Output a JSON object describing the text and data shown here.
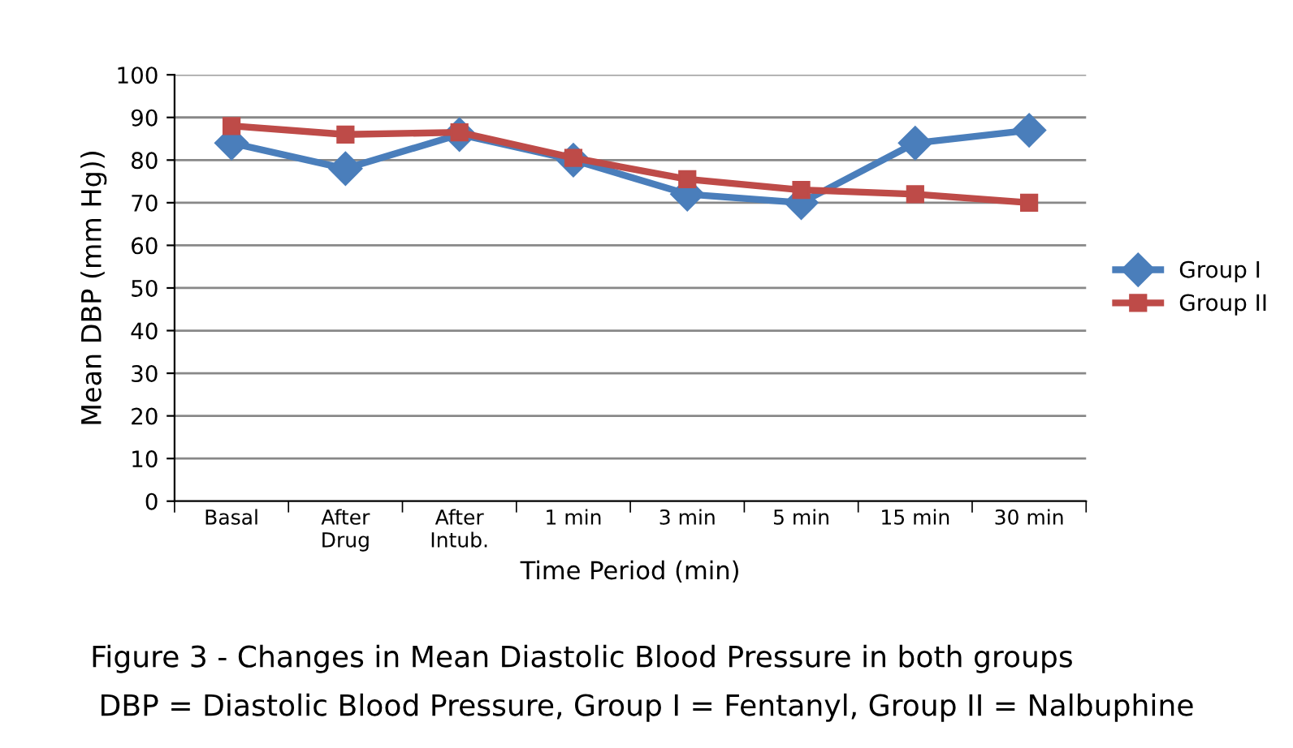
{
  "chart_data": {
    "type": "line",
    "ylabel": "Mean DBP (mm Hg))",
    "xlabel": "Time Period (min)",
    "categories": [
      "Basal",
      "After\nDrug",
      "After\nIntub.",
      "1 min",
      "3 min",
      "5 min",
      "15 min",
      "30 min"
    ],
    "series": [
      {
        "name": "Group I",
        "color": "#4a7ebb",
        "marker": "diamond",
        "values": [
          84,
          78,
          86,
          80,
          72,
          70,
          84,
          87
        ]
      },
      {
        "name": "Group II",
        "color": "#be4b48",
        "marker": "square",
        "values": [
          88,
          86,
          86.5,
          80.5,
          75.5,
          73,
          72,
          70
        ]
      }
    ],
    "ylim": [
      0,
      100
    ],
    "yticks": [
      0,
      10,
      20,
      30,
      40,
      50,
      60,
      70,
      80,
      90,
      100
    ],
    "grid": "y",
    "legend": "right",
    "line_style": "solid",
    "annotations": [
      "Figure 3 - Changes in Mean Diastolic Blood Pressure in both groups",
      "DBP = Diastolic Blood Pressure, Group I = Fentanyl, Group II = Nalbuphine"
    ]
  }
}
